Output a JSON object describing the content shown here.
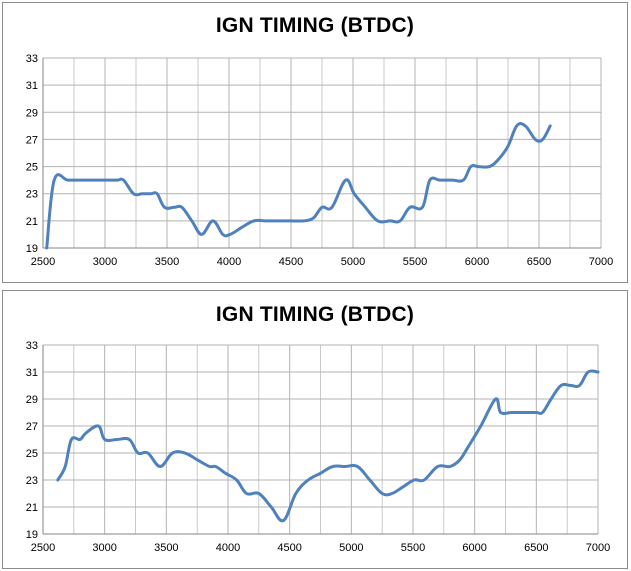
{
  "colors": {
    "line": "#4f81bd",
    "grid": "#b3b3b3",
    "axis": "#868686"
  },
  "chart_data": [
    {
      "type": "line",
      "title": "IGN TIMING (BTDC)",
      "xlabel": "",
      "ylabel": "",
      "xlim": [
        2500,
        7000
      ],
      "ylim": [
        19,
        33
      ],
      "xticks": [
        2500,
        3000,
        3500,
        4000,
        4500,
        5000,
        5500,
        6000,
        6500,
        7000
      ],
      "yticks": [
        19,
        21,
        23,
        25,
        27,
        29,
        31,
        33
      ],
      "grid": true,
      "legend": "none",
      "series": [
        {
          "x": [
            2530,
            2590,
            2700,
            2800,
            2900,
            3000,
            3100,
            3150,
            3230,
            3300,
            3370,
            3420,
            3480,
            3560,
            3620,
            3700,
            3780,
            3870,
            3950,
            4010,
            4100,
            4200,
            4300,
            4400,
            4500,
            4600,
            4680,
            4750,
            4830,
            4940,
            5010,
            5100,
            5200,
            5300,
            5380,
            5460,
            5560,
            5620,
            5700,
            5800,
            5890,
            5950,
            6010,
            6100,
            6170,
            6250,
            6320,
            6390,
            6470,
            6530,
            6590
          ],
          "values": [
            19,
            24,
            24,
            24,
            24,
            24,
            24,
            24,
            23,
            23,
            23,
            23,
            22,
            22,
            22,
            21,
            20,
            21,
            20,
            20,
            20.5,
            21,
            21,
            21,
            21,
            21,
            21.2,
            22,
            22,
            24,
            23,
            22,
            21,
            21,
            21,
            22,
            22,
            24,
            24,
            24,
            24,
            25,
            25,
            25,
            25.5,
            26.5,
            28,
            28,
            27,
            27,
            28
          ]
        }
      ]
    },
    {
      "type": "line",
      "title": "IGN TIMING (BTDC)",
      "xlabel": "",
      "ylabel": "",
      "xlim": [
        2500,
        7000
      ],
      "ylim": [
        19,
        33
      ],
      "xticks": [
        2500,
        3000,
        3500,
        4000,
        4500,
        5000,
        5500,
        6000,
        6500,
        7000
      ],
      "yticks": [
        19,
        21,
        23,
        25,
        27,
        29,
        31,
        33
      ],
      "grid": true,
      "legend": "none",
      "series": [
        {
          "x": [
            2620,
            2680,
            2730,
            2800,
            2850,
            2950,
            3000,
            3100,
            3200,
            3270,
            3350,
            3450,
            3550,
            3650,
            3750,
            3850,
            3900,
            3980,
            4070,
            4150,
            4250,
            4350,
            4450,
            4550,
            4650,
            4750,
            4850,
            4950,
            5050,
            5150,
            5250,
            5330,
            5420,
            5510,
            5590,
            5700,
            5800,
            5880,
            5950,
            6050,
            6170,
            6210,
            6300,
            6400,
            6500,
            6550,
            6620,
            6700,
            6780,
            6850,
            6920,
            7000
          ],
          "values": [
            23,
            24,
            26,
            26,
            26.5,
            27,
            26,
            26,
            26,
            25,
            25,
            24,
            25,
            25,
            24.5,
            24,
            24,
            23.5,
            23,
            22,
            22,
            21,
            20,
            22,
            23,
            23.5,
            24,
            24,
            24,
            23,
            22,
            22,
            22.5,
            23,
            23,
            24,
            24,
            24.5,
            25.5,
            27,
            29,
            28,
            28,
            28,
            28,
            28,
            29,
            30,
            30,
            30,
            31,
            31
          ]
        }
      ]
    }
  ]
}
